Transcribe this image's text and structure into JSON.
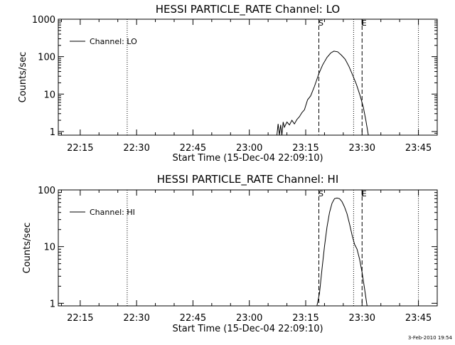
{
  "chart_data": [
    {
      "type": "line",
      "title": "HESSI PARTICLE_RATE Channel: LO",
      "xlabel": "Start Time (15-Dec-04 22:09:10)",
      "ylabel": "Counts/sec",
      "xscale": "time",
      "yscale": "log",
      "xlim": [
        "22:09:10",
        "23:50:00"
      ],
      "ylim": [
        0.8,
        1000
      ],
      "xticks": [
        "22:15",
        "22:30",
        "22:45",
        "23:00",
        "23:15",
        "23:30",
        "23:45"
      ],
      "yticks": [
        "1",
        "10",
        "100",
        "1000"
      ],
      "legend": {
        "entries": [
          "Channel: LO"
        ],
        "position": "top-left"
      },
      "series": [
        {
          "name": "Channel: LO",
          "points": [
            [
              "23:07:20",
              0.8
            ],
            [
              "23:07:40",
              1.6
            ],
            [
              "23:08:00",
              0.8
            ],
            [
              "23:08:20",
              1.5
            ],
            [
              "23:08:40",
              0.8
            ],
            [
              "23:09:00",
              1.8
            ],
            [
              "23:09:20",
              1.3
            ],
            [
              "23:10:00",
              1.8
            ],
            [
              "23:10:40",
              1.5
            ],
            [
              "23:11:20",
              2.0
            ],
            [
              "23:12:00",
              1.6
            ],
            [
              "23:12:40",
              2.1
            ],
            [
              "23:13:20",
              2.5
            ],
            [
              "23:14:00",
              3.2
            ],
            [
              "23:14:40",
              3.8
            ],
            [
              "23:15:30",
              7
            ],
            [
              "23:16:20",
              9
            ],
            [
              "23:17:20",
              16
            ],
            [
              "23:18:30",
              35
            ],
            [
              "23:19:30",
              60
            ],
            [
              "23:20:40",
              95
            ],
            [
              "23:21:40",
              125
            ],
            [
              "23:22:30",
              140
            ],
            [
              "23:23:30",
              135
            ],
            [
              "23:24:30",
              110
            ],
            [
              "23:25:30",
              85
            ],
            [
              "23:26:30",
              55
            ],
            [
              "23:27:30",
              32
            ],
            [
              "23:28:30",
              18
            ],
            [
              "23:29:30",
              9
            ],
            [
              "23:30:20",
              4.5
            ],
            [
              "23:31:00",
              2
            ],
            [
              "23:31:40",
              0.8
            ]
          ]
        }
      ],
      "vlines_dotted": [
        "22:27:30",
        "23:27:45",
        "23:45:00"
      ],
      "vlines_dashed": [
        {
          "label": "S",
          "time": "23:18:30"
        },
        {
          "label": "E",
          "time": "23:30:00"
        }
      ]
    },
    {
      "type": "line",
      "title": "HESSI PARTICLE_RATE Channel: HI",
      "xlabel": "Start Time (15-Dec-04 22:09:10)",
      "ylabel": "Counts/sec",
      "xscale": "time",
      "yscale": "log",
      "xlim": [
        "22:09:10",
        "23:50:00"
      ],
      "ylim": [
        0.9,
        100
      ],
      "xticks": [
        "22:15",
        "22:30",
        "22:45",
        "23:00",
        "23:15",
        "23:30",
        "23:45"
      ],
      "yticks": [
        "1",
        "10",
        "100"
      ],
      "legend": {
        "entries": [
          "Channel: HI"
        ],
        "position": "top-left"
      },
      "series": [
        {
          "name": "Channel: HI",
          "points": [
            [
              "23:18:00",
              0.9
            ],
            [
              "23:18:40",
              1.5
            ],
            [
              "23:19:20",
              4
            ],
            [
              "23:20:00",
              10
            ],
            [
              "23:20:40",
              22
            ],
            [
              "23:21:20",
              40
            ],
            [
              "23:22:00",
              58
            ],
            [
              "23:22:40",
              70
            ],
            [
              "23:23:20",
              72
            ],
            [
              "23:24:00",
              70
            ],
            [
              "23:24:40",
              62
            ],
            [
              "23:25:20",
              50
            ],
            [
              "23:26:00",
              38
            ],
            [
              "23:26:40",
              25
            ],
            [
              "23:27:20",
              16
            ],
            [
              "23:28:00",
              11
            ],
            [
              "23:28:40",
              9
            ],
            [
              "23:29:20",
              6
            ],
            [
              "23:30:00",
              3.5
            ],
            [
              "23:30:40",
              1.8
            ],
            [
              "23:31:20",
              0.9
            ]
          ]
        }
      ],
      "vlines_dotted": [
        "22:27:30",
        "23:27:45",
        "23:45:00"
      ],
      "vlines_dashed": [
        {
          "label": "S",
          "time": "23:18:30"
        },
        {
          "label": "E",
          "time": "23:30:00"
        }
      ]
    }
  ],
  "footer": {
    "timestamp": "3-Feb-2010 19:54"
  }
}
